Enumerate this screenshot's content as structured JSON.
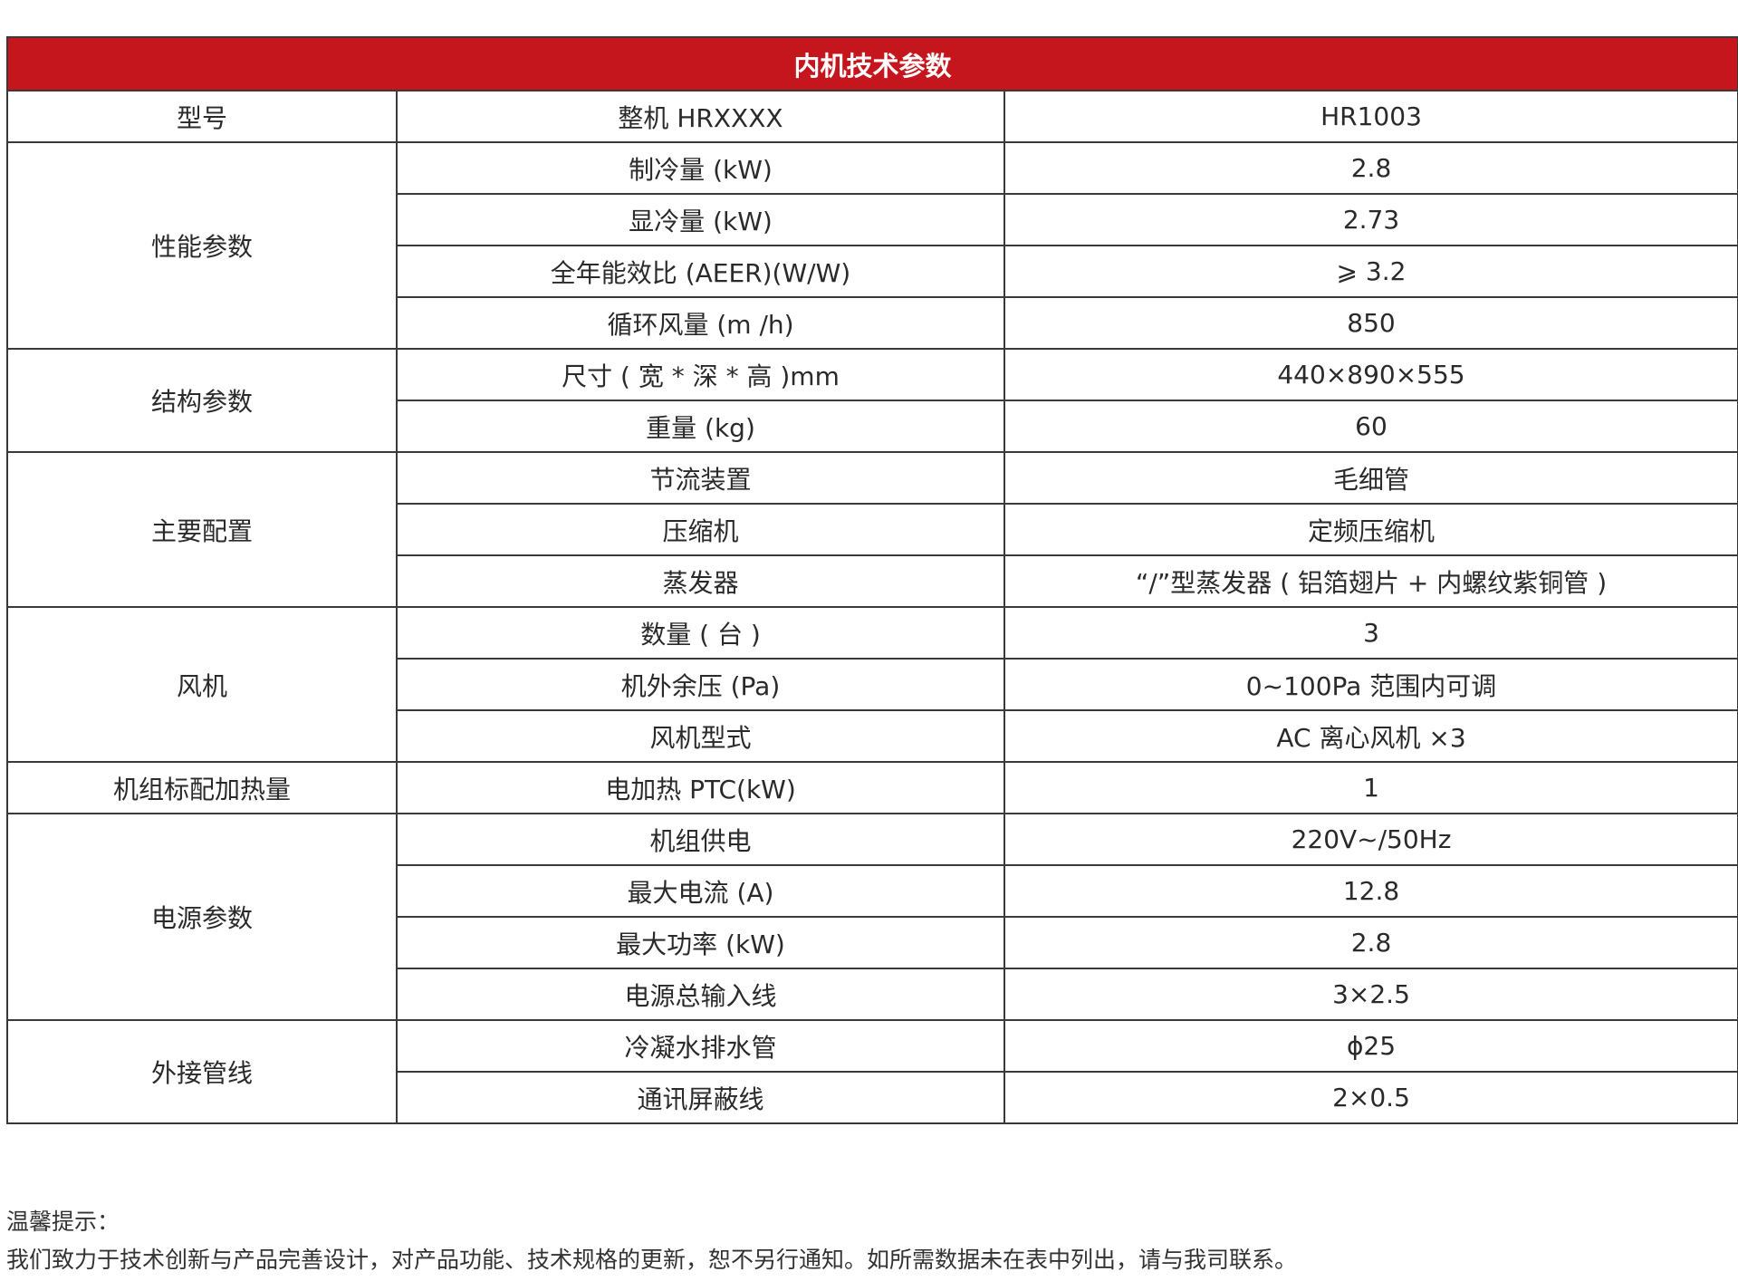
{
  "table": {
    "title": "内机技术参数",
    "groups": [
      {
        "label": "型号",
        "rows": [
          {
            "param": "整机 HRXXXX",
            "value": "HR1003"
          }
        ]
      },
      {
        "label": "性能参数",
        "rows": [
          {
            "param": "制冷量 (kW)",
            "value": "2.8"
          },
          {
            "param": "显冷量 (kW)",
            "value": "2.73"
          },
          {
            "param": "全年能效比 (AEER)(W/W)",
            "value": "⩾ 3.2"
          },
          {
            "param": "循环风量 (m /h)",
            "value": "850"
          }
        ]
      },
      {
        "label": "结构参数",
        "rows": [
          {
            "param": "尺寸 ( 宽 * 深 * 高 )mm",
            "value": "440×890×555"
          },
          {
            "param": "重量 (kg)",
            "value": "60"
          }
        ]
      },
      {
        "label": "主要配置",
        "rows": [
          {
            "param": "节流装置",
            "value": "毛细管"
          },
          {
            "param": "压缩机",
            "value": "定频压缩机"
          },
          {
            "param": "蒸发器",
            "value": "“/”型蒸发器 ( 铝箔翅片 + 内螺纹紫铜管 )"
          }
        ]
      },
      {
        "label": "风机",
        "rows": [
          {
            "param": "数量 ( 台 )",
            "value": "3"
          },
          {
            "param": "机外余压 (Pa)",
            "value": "0~100Pa 范围内可调"
          },
          {
            "param": "风机型式",
            "value": "AC 离心风机 ×3"
          }
        ]
      },
      {
        "label": "机组标配加热量",
        "rows": [
          {
            "param": "电加热 PTC(kW)",
            "value": "1"
          }
        ]
      },
      {
        "label": "电源参数",
        "rows": [
          {
            "param": "机组供电",
            "value": "220V~/50Hz"
          },
          {
            "param": "最大电流 (A)",
            "value": "12.8"
          },
          {
            "param": "最大功率 (kW)",
            "value": "2.8"
          },
          {
            "param": "电源总输入线",
            "value": "3×2.5"
          }
        ]
      },
      {
        "label": "外接管线",
        "rows": [
          {
            "param": "冷凝水排水管",
            "value": "ϕ25"
          },
          {
            "param": "通讯屏蔽线",
            "value": "2×0.5"
          }
        ]
      }
    ]
  },
  "notes": {
    "heading": "温馨提示：",
    "text": "我们致力于技术创新与产品完善设计，对产品功能、技术规格的更新，恕不另行通知。如所需数据未在表中列出，请与我司联系。"
  },
  "colors": {
    "header_bg": "#c4161c",
    "header_text": "#ffffff",
    "border": "#3a3a3a"
  }
}
